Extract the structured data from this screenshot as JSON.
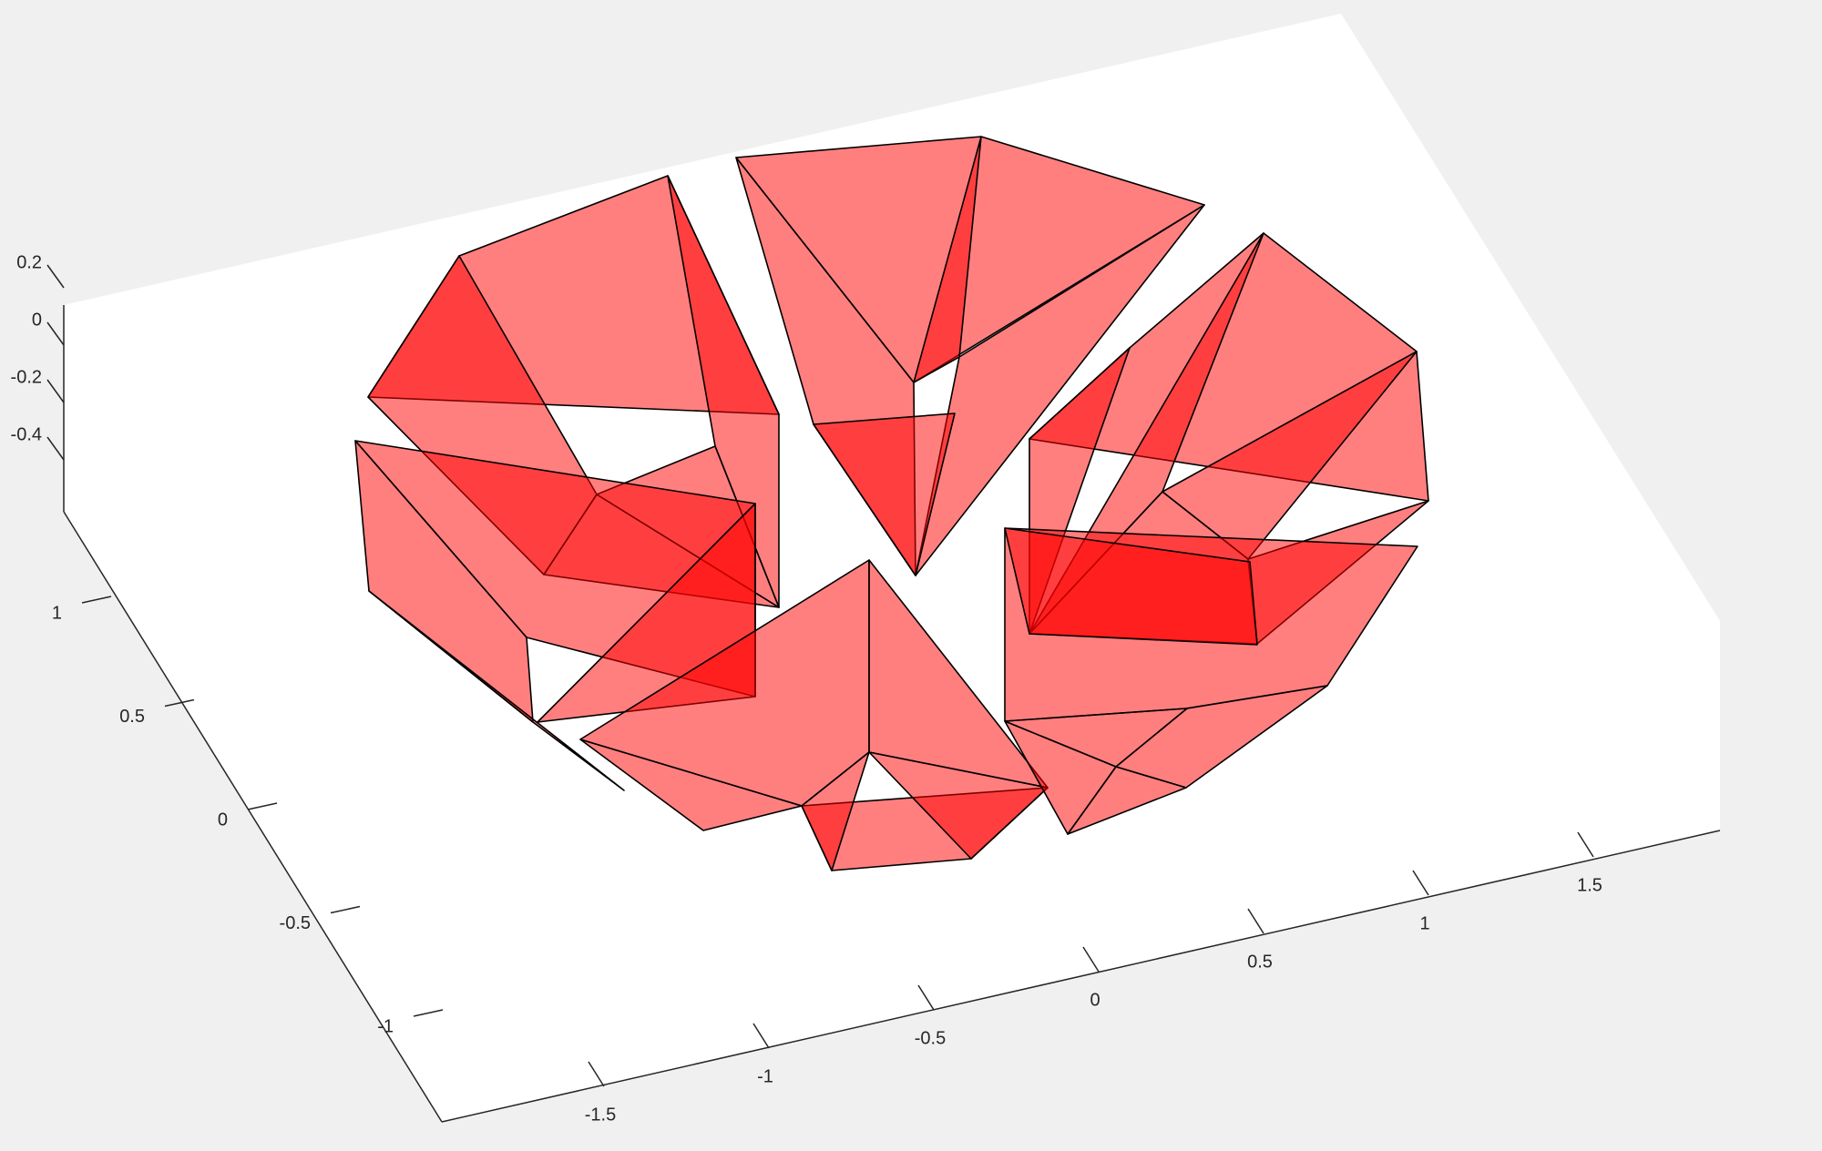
{
  "chart_data": {
    "type": "3d-surface",
    "title": "",
    "xlabel": "",
    "ylabel": "",
    "zlabel": "",
    "xlim": [
      -1.75,
      1.75
    ],
    "ylim": [
      -1.5,
      1.5
    ],
    "zlim": [
      -0.5,
      0.2
    ],
    "x_ticks": [
      "-1.5",
      "-1",
      "-0.5",
      "0",
      "0.5",
      "1",
      "1.5"
    ],
    "y_ticks": [
      "-1",
      "-0.5",
      "0",
      "0.5",
      "1"
    ],
    "z_ticks": [
      "0.2",
      "0",
      "-0.2",
      "-0.4"
    ],
    "grid": false,
    "face_color": "#ff0000",
    "face_alpha": 0.5,
    "edge_color": "#000000",
    "plot_background": "#ffffff",
    "figure_background": "#f0f0f0",
    "objects": [
      {
        "name": "segment-upper-left"
      },
      {
        "name": "segment-top"
      },
      {
        "name": "segment-upper-right"
      },
      {
        "name": "segment-lower-left"
      },
      {
        "name": "segment-bottom"
      },
      {
        "name": "segment-lower-right"
      }
    ]
  }
}
